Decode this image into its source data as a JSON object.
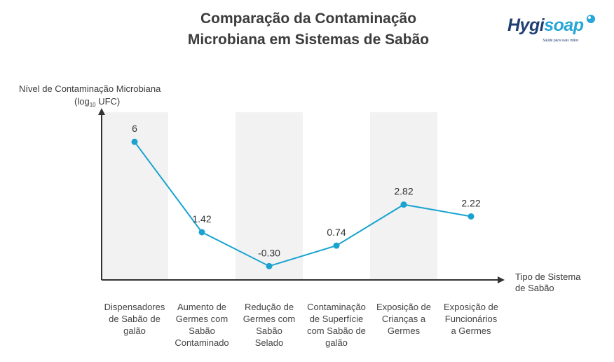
{
  "chart_data": {
    "type": "line",
    "title_lines": [
      "Comparação da Contaminação",
      "Microbiana em Sistemas de Sabão"
    ],
    "ylabel_lines": [
      "Nível de Contaminação Microbiana",
      "(log",
      "10",
      " UFC)"
    ],
    "xlabel_lines": [
      "Tipo de Sistema",
      "de Sabão"
    ],
    "categories": [
      [
        "Dispensadores",
        "de Sabão de",
        "galão"
      ],
      [
        "Aumento de",
        "Germes com",
        "Sabão",
        "Contaminado"
      ],
      [
        "Redução de",
        "Germes com",
        "Sabão",
        "Selado"
      ],
      [
        "Contaminação",
        "de Superfície",
        "com Sabão de",
        "galão"
      ],
      [
        "Exposição de",
        "Crianças a",
        "Germes"
      ],
      [
        "Exposição de",
        "Funcionários",
        "a Germes"
      ]
    ],
    "values": [
      6,
      1.42,
      -0.3,
      0.74,
      2.82,
      2.22
    ],
    "value_labels": [
      "6",
      "1.42",
      "-0.30",
      "0.74",
      "2.82",
      "2.22"
    ],
    "ylim": [
      -1.0,
      7.5
    ],
    "grid": false,
    "alternating_bands": true,
    "colors": {
      "line": "#1aa3d0",
      "band": "#f2f2f2",
      "axis": "#333333"
    }
  },
  "brand": {
    "name_part1": "Hygi",
    "name_part2": "soap",
    "tagline": "Saúde para suas mãos",
    "colors": {
      "dark": "#1f3f72",
      "light": "#27a6d8"
    }
  }
}
